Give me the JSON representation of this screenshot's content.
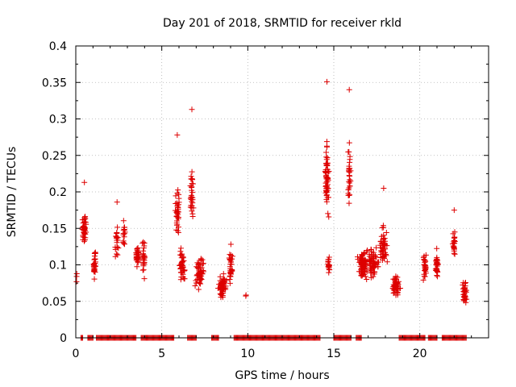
{
  "chart_data": {
    "type": "scatter",
    "title": "Day 201 of 2018, SRMTID for receiver rkld",
    "xlabel": "GPS time / hours",
    "ylabel": "SRMTID / TECUs",
    "xlim": [
      0,
      24
    ],
    "ylim": [
      0,
      0.4
    ],
    "xticks": [
      0,
      5,
      10,
      15,
      20
    ],
    "xtick_labels": [
      "0",
      "5",
      "10",
      "15",
      "20"
    ],
    "yticks": [
      0,
      0.05,
      0.1,
      0.15,
      0.2,
      0.25,
      0.3,
      0.35,
      0.4
    ],
    "ytick_labels": [
      "0",
      "0.05",
      "0.1",
      "0.15",
      "0.2",
      "0.25",
      "0.3",
      "0.35",
      "0.4"
    ],
    "grid": true,
    "marker": "+",
    "color": "#dd0000",
    "zero_ranges": [
      [
        0.3,
        0.4
      ],
      [
        0.7,
        1.0
      ],
      [
        1.2,
        3.5
      ],
      [
        3.8,
        5.7
      ],
      [
        6.5,
        7.0
      ],
      [
        7.9,
        8.3
      ],
      [
        9.2,
        14.2
      ],
      [
        15.0,
        16.0
      ],
      [
        16.3,
        16.6
      ],
      [
        18.8,
        20.3
      ],
      [
        20.5,
        21.0
      ],
      [
        21.3,
        22.7
      ]
    ],
    "zero_step": 0.05,
    "clusters": [
      {
        "x": 0.05,
        "y": 0.085,
        "n": 3,
        "dx": 0.05,
        "dy": 0.01
      },
      {
        "x": 0.5,
        "y": 0.15,
        "n": 40,
        "dx": 0.15,
        "dy": 0.025,
        "peak": 0.213
      },
      {
        "x": 1.1,
        "y": 0.1,
        "n": 30,
        "dx": 0.1,
        "dy": 0.025
      },
      {
        "x": 2.4,
        "y": 0.13,
        "n": 20,
        "dx": 0.12,
        "dy": 0.03,
        "peak": 0.186
      },
      {
        "x": 2.8,
        "y": 0.14,
        "n": 15,
        "dx": 0.1,
        "dy": 0.03
      },
      {
        "x": 3.6,
        "y": 0.11,
        "n": 35,
        "dx": 0.15,
        "dy": 0.02
      },
      {
        "x": 3.95,
        "y": 0.11,
        "n": 25,
        "dx": 0.12,
        "dy": 0.035
      },
      {
        "x": 5.9,
        "y": 0.17,
        "n": 35,
        "dx": 0.15,
        "dy": 0.05,
        "peak": 0.278
      },
      {
        "x": 6.2,
        "y": 0.1,
        "n": 40,
        "dx": 0.25,
        "dy": 0.04
      },
      {
        "x": 6.75,
        "y": 0.2,
        "n": 30,
        "dx": 0.12,
        "dy": 0.06,
        "peak": 0.313
      },
      {
        "x": 7.2,
        "y": 0.09,
        "n": 50,
        "dx": 0.3,
        "dy": 0.03
      },
      {
        "x": 8.5,
        "y": 0.07,
        "n": 60,
        "dx": 0.3,
        "dy": 0.02
      },
      {
        "x": 9.0,
        "y": 0.1,
        "n": 30,
        "dx": 0.15,
        "dy": 0.03
      },
      {
        "x": 9.9,
        "y": 0.058,
        "n": 2,
        "dx": 0.03,
        "dy": 0.003
      },
      {
        "x": 14.6,
        "y": 0.22,
        "n": 60,
        "dx": 0.15,
        "dy": 0.08,
        "peak": 0.351
      },
      {
        "x": 14.7,
        "y": 0.1,
        "n": 20,
        "dx": 0.1,
        "dy": 0.02
      },
      {
        "x": 15.9,
        "y": 0.22,
        "n": 30,
        "dx": 0.1,
        "dy": 0.06,
        "peak": 0.34
      },
      {
        "x": 16.7,
        "y": 0.1,
        "n": 80,
        "dx": 0.4,
        "dy": 0.025
      },
      {
        "x": 17.3,
        "y": 0.1,
        "n": 60,
        "dx": 0.4,
        "dy": 0.03
      },
      {
        "x": 17.9,
        "y": 0.13,
        "n": 50,
        "dx": 0.3,
        "dy": 0.04,
        "peak": 0.205
      },
      {
        "x": 18.6,
        "y": 0.07,
        "n": 50,
        "dx": 0.3,
        "dy": 0.02
      },
      {
        "x": 20.3,
        "y": 0.1,
        "n": 25,
        "dx": 0.12,
        "dy": 0.025
      },
      {
        "x": 21.0,
        "y": 0.1,
        "n": 30,
        "dx": 0.12,
        "dy": 0.025
      },
      {
        "x": 22.0,
        "y": 0.13,
        "n": 20,
        "dx": 0.1,
        "dy": 0.025,
        "peak": 0.175
      },
      {
        "x": 22.6,
        "y": 0.06,
        "n": 35,
        "dx": 0.15,
        "dy": 0.02
      }
    ]
  }
}
